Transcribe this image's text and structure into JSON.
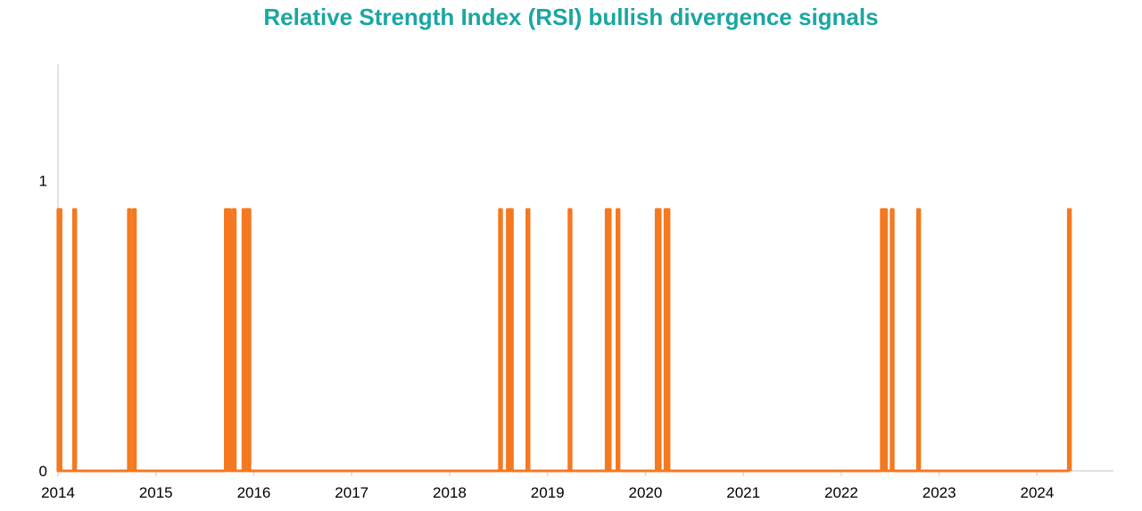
{
  "chart_data": {
    "type": "line",
    "title": "Relative Strength Index (RSI) bullish divergence signals",
    "xlabel": "",
    "ylabel": "",
    "x_range": [
      2014.0,
      2024.78
    ],
    "ylim": [
      0,
      1.4
    ],
    "x_ticks": [
      "2014",
      "2015",
      "2016",
      "2017",
      "2018",
      "2019",
      "2020",
      "2021",
      "2022",
      "2023",
      "2024"
    ],
    "y_ticks": [
      "0",
      "1"
    ],
    "grid": false,
    "legend": "none",
    "signal_level": 0.9,
    "series": [
      {
        "color": "#f47920",
        "signal_dates": [
          2014.01,
          2014.02,
          2014.17,
          2014.73,
          2014.78,
          2015.72,
          2015.75,
          2015.8,
          2015.9,
          2015.93,
          2015.95,
          2018.52,
          2018.6,
          2018.63,
          2018.8,
          2019.23,
          2019.61,
          2019.63,
          2019.72,
          2020.12,
          2020.14,
          2020.21,
          2020.23,
          2022.42,
          2022.45,
          2022.52,
          2022.79,
          2024.33
        ]
      }
    ]
  },
  "colors": {
    "title": "#1aa6a2",
    "axis": "#d9d9d9",
    "line": "#f47920"
  }
}
